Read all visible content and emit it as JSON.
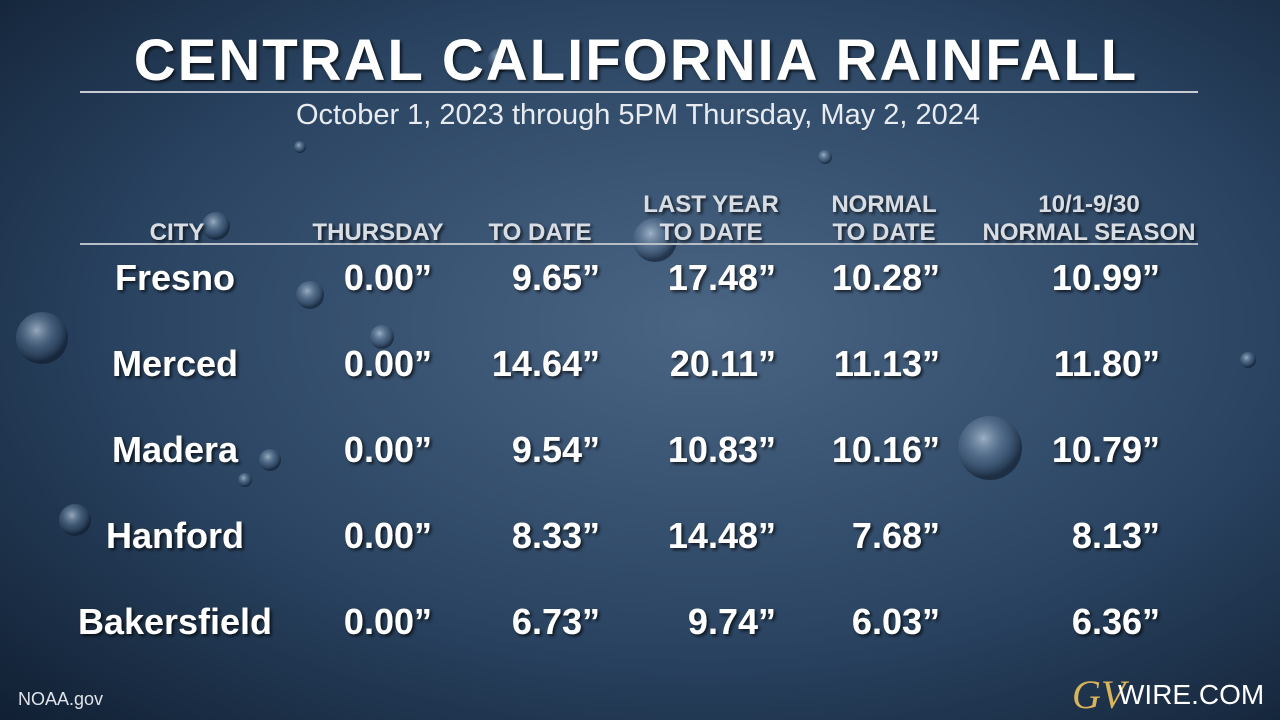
{
  "header": {
    "title": "CENTRAL CALIFORNIA RAINFALL",
    "subtitle": "October 1, 2023  through  5PM Thursday, May 2, 2024"
  },
  "table": {
    "columns": [
      [
        "CITY"
      ],
      [
        "THURSDAY"
      ],
      [
        "TO DATE"
      ],
      [
        "LAST YEAR",
        "TO DATE"
      ],
      [
        "NORMAL",
        "TO DATE"
      ],
      [
        "10/1-9/30",
        "NORMAL SEASON"
      ]
    ],
    "rows": [
      [
        "Fresno",
        "0.00”",
        "9.65”",
        "17.48”",
        "10.28”",
        "10.99”"
      ],
      [
        "Merced",
        "0.00”",
        "14.64”",
        "20.11”",
        "11.13”",
        "11.80”"
      ],
      [
        "Madera",
        "0.00”",
        "9.54”",
        "10.83”",
        "10.16”",
        "10.79”"
      ],
      [
        "Hanford",
        "0.00”",
        "8.33”",
        "14.48”",
        "7.68”",
        "8.13”"
      ],
      [
        "Bakersfield",
        "0.00”",
        "6.73”",
        "9.74”",
        "6.03”",
        "6.36”"
      ]
    ]
  },
  "footer": {
    "source": "NOAA.gov",
    "logo_mark": "GV",
    "logo_text": "WIRE.COM"
  }
}
